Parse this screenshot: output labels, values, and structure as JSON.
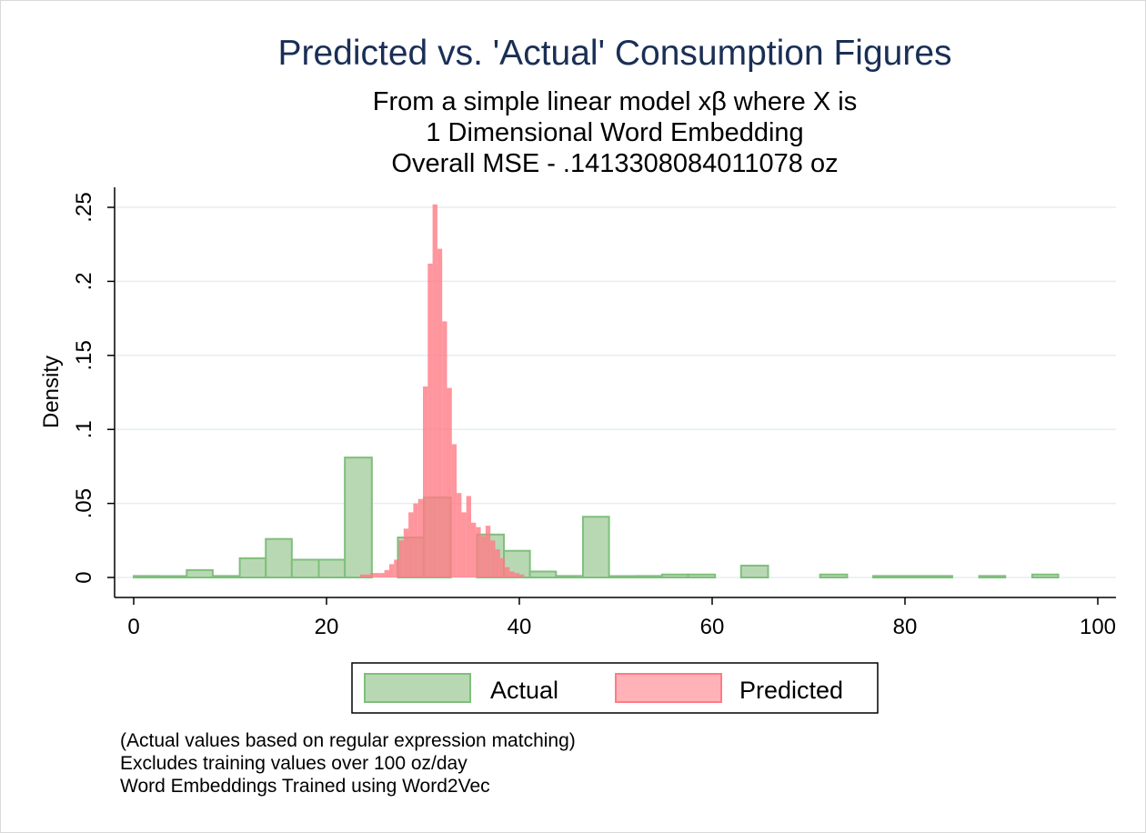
{
  "chart_data": {
    "type": "histogram",
    "title": "Predicted vs. 'Actual' Consumption Figures",
    "subtitle": [
      "From a simple linear model xβ where X is",
      "1 Dimensional Word Embedding",
      "Overall MSE - .1413308084011078 oz"
    ],
    "xlabel": "",
    "ylabel": "Density",
    "xlim": [
      -2,
      102
    ],
    "ylim": [
      0,
      0.26
    ],
    "xticks": [
      0,
      20,
      40,
      60,
      80,
      100
    ],
    "yticks": [
      {
        "value": 0,
        "label": "0"
      },
      {
        "value": 0.05,
        "label": ".05"
      },
      {
        "value": 0.1,
        "label": ".1"
      },
      {
        "value": 0.15,
        "label": ".15"
      },
      {
        "value": 0.2,
        "label": ".2"
      },
      {
        "value": 0.25,
        "label": ".25"
      }
    ],
    "grid": true,
    "legend_position": "bottom",
    "series": [
      {
        "name": "Actual",
        "fill": "#b8d8b4",
        "stroke": "#7fbf7b",
        "bins": [
          {
            "x0": 0,
            "x1": 2.7,
            "y": 0.001
          },
          {
            "x0": 2.7,
            "x1": 5.5,
            "y": 0.0005
          },
          {
            "x0": 5.5,
            "x1": 8.2,
            "y": 0.005
          },
          {
            "x0": 8.2,
            "x1": 11,
            "y": 0.001
          },
          {
            "x0": 11,
            "x1": 13.7,
            "y": 0.013
          },
          {
            "x0": 13.7,
            "x1": 16.4,
            "y": 0.026
          },
          {
            "x0": 16.4,
            "x1": 19.2,
            "y": 0.012
          },
          {
            "x0": 19.2,
            "x1": 21.9,
            "y": 0.012
          },
          {
            "x0": 21.9,
            "x1": 24.7,
            "y": 0.081
          },
          {
            "x0": 27.4,
            "x1": 30.1,
            "y": 0.027
          },
          {
            "x0": 30.1,
            "x1": 32.9,
            "y": 0.054
          },
          {
            "x0": 35.6,
            "x1": 38.4,
            "y": 0.029
          },
          {
            "x0": 38.4,
            "x1": 41.1,
            "y": 0.018
          },
          {
            "x0": 41.1,
            "x1": 43.8,
            "y": 0.004
          },
          {
            "x0": 43.8,
            "x1": 46.6,
            "y": 0.001
          },
          {
            "x0": 46.6,
            "x1": 49.3,
            "y": 0.041
          },
          {
            "x0": 49.3,
            "x1": 52.1,
            "y": 0.0005
          },
          {
            "x0": 52.1,
            "x1": 54.8,
            "y": 0.001
          },
          {
            "x0": 54.8,
            "x1": 57.5,
            "y": 0.002
          },
          {
            "x0": 57.5,
            "x1": 60.3,
            "y": 0.002
          },
          {
            "x0": 63,
            "x1": 65.8,
            "y": 0.008
          },
          {
            "x0": 71.2,
            "x1": 74,
            "y": 0.002
          },
          {
            "x0": 76.7,
            "x1": 84.9,
            "y": 0.001
          },
          {
            "x0": 87.7,
            "x1": 90.4,
            "y": 0.001
          },
          {
            "x0": 93.2,
            "x1": 95.9,
            "y": 0.002
          }
        ]
      },
      {
        "name": "Predicted",
        "fill": "#ff7b85",
        "stroke": "#ff7b85",
        "bins": [
          {
            "x0": 23.5,
            "x1": 24,
            "y": 0.002
          },
          {
            "x0": 24,
            "x1": 24.5,
            "y": 0.002
          },
          {
            "x0": 24.5,
            "x1": 25,
            "y": 0.003
          },
          {
            "x0": 25,
            "x1": 25.5,
            "y": 0.003
          },
          {
            "x0": 25.5,
            "x1": 26,
            "y": 0.003
          },
          {
            "x0": 26,
            "x1": 26.5,
            "y": 0.005
          },
          {
            "x0": 26.5,
            "x1": 27,
            "y": 0.009
          },
          {
            "x0": 27,
            "x1": 27.5,
            "y": 0.012
          },
          {
            "x0": 27.5,
            "x1": 28,
            "y": 0.025
          },
          {
            "x0": 28,
            "x1": 28.5,
            "y": 0.033
          },
          {
            "x0": 28.5,
            "x1": 29,
            "y": 0.044
          },
          {
            "x0": 29,
            "x1": 29.5,
            "y": 0.05
          },
          {
            "x0": 29.5,
            "x1": 30,
            "y": 0.053
          },
          {
            "x0": 30,
            "x1": 30.5,
            "y": 0.129
          },
          {
            "x0": 30.5,
            "x1": 31,
            "y": 0.212
          },
          {
            "x0": 31,
            "x1": 31.5,
            "y": 0.252
          },
          {
            "x0": 31.5,
            "x1": 32,
            "y": 0.222
          },
          {
            "x0": 32,
            "x1": 32.5,
            "y": 0.173
          },
          {
            "x0": 32.5,
            "x1": 33,
            "y": 0.128
          },
          {
            "x0": 33,
            "x1": 33.5,
            "y": 0.09
          },
          {
            "x0": 33.5,
            "x1": 34,
            "y": 0.057
          },
          {
            "x0": 34,
            "x1": 34.5,
            "y": 0.044
          },
          {
            "x0": 34.5,
            "x1": 35,
            "y": 0.055
          },
          {
            "x0": 35,
            "x1": 35.5,
            "y": 0.037
          },
          {
            "x0": 35.5,
            "x1": 36,
            "y": 0.034
          },
          {
            "x0": 36,
            "x1": 36.5,
            "y": 0.028
          },
          {
            "x0": 36.5,
            "x1": 37,
            "y": 0.035
          },
          {
            "x0": 37,
            "x1": 37.5,
            "y": 0.025
          },
          {
            "x0": 37.5,
            "x1": 38,
            "y": 0.019
          },
          {
            "x0": 38,
            "x1": 38.5,
            "y": 0.013
          },
          {
            "x0": 38.5,
            "x1": 39,
            "y": 0.007
          },
          {
            "x0": 39,
            "x1": 39.5,
            "y": 0.004
          },
          {
            "x0": 39.5,
            "x1": 40,
            "y": 0.003
          },
          {
            "x0": 40,
            "x1": 40.5,
            "y": 0.002
          }
        ]
      }
    ],
    "notes": [
      "(Actual values based on regular expression matching)",
      "Excludes training values over 100 oz/day",
      "Word Embeddings Trained using Word2Vec"
    ]
  }
}
